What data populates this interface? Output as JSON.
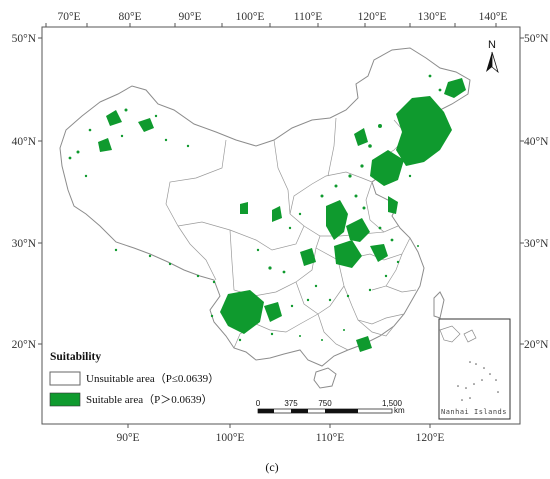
{
  "top_ticks": [
    "70°E",
    "80°E",
    "90°E",
    "100°E",
    "110°E",
    "120°E",
    "130°E",
    "140°E"
  ],
  "bottom_ticks": [
    "90°E",
    "100°E",
    "110°E",
    "120°E"
  ],
  "left_ticks": [
    "50°N",
    "40°N",
    "30°N",
    "20°N"
  ],
  "right_ticks": [
    "50°N",
    "40°N",
    "30°N",
    "20°N"
  ],
  "north_arrow": {
    "label": "N"
  },
  "legend": {
    "title": "Suitability",
    "items": [
      {
        "label": "Unsuitable area（P≤0.0639）",
        "color": "#ffffff"
      },
      {
        "label": "Suitable area（P＞0.0639）",
        "color": "#0f9a2e"
      }
    ]
  },
  "scale_bar": {
    "labels": [
      "0",
      "375",
      "750",
      "1,500"
    ],
    "unit": "km"
  },
  "inset": {
    "label": "Nanhai Islands"
  },
  "panel_label": "(c)",
  "colors": {
    "suitable": "#0f9a2e",
    "boundary": "#8c8c8c",
    "frame": "#555555"
  }
}
